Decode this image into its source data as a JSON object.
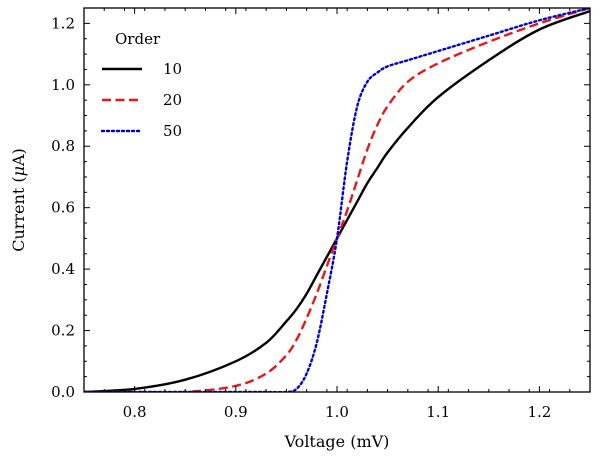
{
  "chart_data": {
    "type": "line",
    "title": "",
    "xlabel": "Voltage (mV)",
    "ylabel_main": "Current (",
    "ylabel_mu": "μ",
    "ylabel_unit": "A)",
    "xlim": [
      0.75,
      1.25
    ],
    "ylim": [
      0.0,
      1.25
    ],
    "x_ticks": [
      0.8,
      0.9,
      1.0,
      1.1,
      1.2
    ],
    "x_tick_labels": [
      "0.8",
      "0.9",
      "1.0",
      "1.1",
      "1.2"
    ],
    "y_ticks": [
      0.0,
      0.2,
      0.4,
      0.6,
      0.8,
      1.0,
      1.2
    ],
    "y_tick_labels": [
      "0.0",
      "0.2",
      "0.4",
      "0.6",
      "0.8",
      "1.0",
      "1.2"
    ],
    "grid": false,
    "legend": {
      "title": "Order",
      "placement": "top-left"
    },
    "x": [
      0.75,
      0.8,
      0.85,
      0.9,
      0.93,
      0.95,
      0.96,
      0.97,
      0.98,
      0.99,
      1.0,
      1.01,
      1.02,
      1.03,
      1.04,
      1.05,
      1.07,
      1.1,
      1.15,
      1.2,
      1.25
    ],
    "series": [
      {
        "name": "10",
        "color": "#000000",
        "dash": "solid",
        "values": [
          0.0,
          0.01,
          0.04,
          0.1,
          0.16,
          0.23,
          0.27,
          0.32,
          0.38,
          0.44,
          0.5,
          0.56,
          0.62,
          0.68,
          0.73,
          0.78,
          0.86,
          0.96,
          1.08,
          1.18,
          1.24
        ]
      },
      {
        "name": "20",
        "color": "#e31a1c",
        "dash": "dashed",
        "values": [
          0.0,
          0.0,
          0.0,
          0.02,
          0.06,
          0.12,
          0.17,
          0.24,
          0.32,
          0.41,
          0.5,
          0.59,
          0.69,
          0.79,
          0.87,
          0.93,
          1.01,
          1.07,
          1.14,
          1.2,
          1.25
        ]
      },
      {
        "name": "50",
        "color": "#0000cc",
        "dash": "dotted",
        "values": [
          0.0,
          0.0,
          0.0,
          0.0,
          0.0,
          0.0,
          0.01,
          0.06,
          0.16,
          0.32,
          0.5,
          0.75,
          0.93,
          1.01,
          1.04,
          1.06,
          1.08,
          1.11,
          1.16,
          1.21,
          1.25
        ]
      }
    ]
  }
}
